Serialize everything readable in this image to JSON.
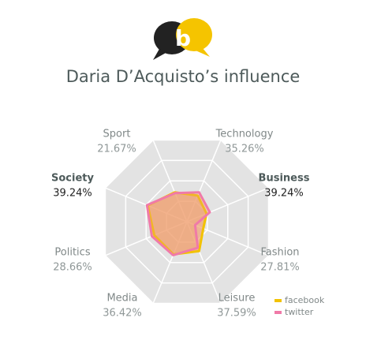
{
  "chart_data": {
    "type": "radar",
    "title": "Daria D’Acquisto’s influence",
    "categories": [
      "Sport",
      "Technology",
      "Business",
      "Fashion",
      "Leisure",
      "Media",
      "Politics",
      "Society"
    ],
    "category_values": [
      21.67,
      35.26,
      39.24,
      27.81,
      37.59,
      36.42,
      28.66,
      39.24
    ],
    "category_value_labels": [
      "21.67%",
      "35.26%",
      "39.24%",
      "27.81%",
      "37.59%",
      "36.42%",
      "28.66%",
      "39.24%"
    ],
    "bold_categories": [
      2,
      7
    ],
    "rlim": [
      0,
      100
    ],
    "rticks": [
      25,
      50,
      75,
      100
    ],
    "series": [
      {
        "name": "facebook",
        "color": "#f2c200",
        "values": [
          36,
          32,
          24,
          20,
          36,
          40,
          40,
          48
        ]
      },
      {
        "name": "twitter",
        "color": "#f07aa8",
        "values": [
          35,
          36,
          28,
          10,
          32,
          41,
          43,
          49
        ]
      }
    ]
  }
}
